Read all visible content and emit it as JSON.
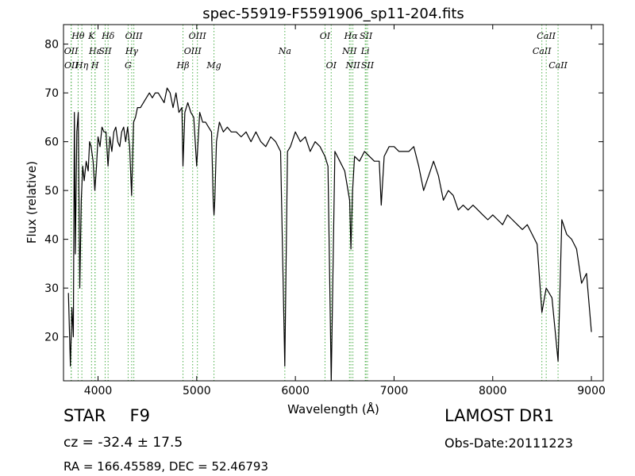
{
  "chart_data": {
    "type": "line",
    "title": "spec-55919-F5591906_sp11-204.fits",
    "xlabel": "Wavelength (Å)",
    "ylabel": "Flux (relative)",
    "xlim": [
      3650,
      9120
    ],
    "ylim": [
      11,
      84
    ],
    "xticks": [
      4000,
      5000,
      6000,
      7000,
      8000,
      9000
    ],
    "yticks": [
      20,
      30,
      40,
      50,
      60,
      70,
      80
    ],
    "grid": false,
    "line_color": "#000000",
    "marker_color": "#4daf4a",
    "series": [
      {
        "x": [
          3700,
          3720,
          3735,
          3750,
          3760,
          3770,
          3785,
          3800,
          3815,
          3830,
          3845,
          3860,
          3880,
          3900,
          3915,
          3930,
          3950,
          3968,
          3985,
          4000,
          4020,
          4040,
          4060,
          4080,
          4101,
          4120,
          4140,
          4160,
          4180,
          4200,
          4220,
          4240,
          4260,
          4280,
          4300,
          4320,
          4340,
          4360,
          4380,
          4400,
          4430,
          4460,
          4490,
          4520,
          4550,
          4580,
          4610,
          4640,
          4670,
          4700,
          4730,
          4760,
          4790,
          4820,
          4850,
          4861,
          4880,
          4910,
          4940,
          4970,
          5000,
          5030,
          5060,
          5090,
          5120,
          5150,
          5167,
          5175,
          5183,
          5200,
          5230,
          5270,
          5310,
          5350,
          5400,
          5450,
          5500,
          5550,
          5600,
          5650,
          5700,
          5750,
          5800,
          5850,
          5893,
          5920,
          5950,
          6000,
          6050,
          6100,
          6150,
          6200,
          6250,
          6300,
          6330,
          6363,
          6400,
          6450,
          6500,
          6550,
          6563,
          6580,
          6600,
          6650,
          6700,
          6750,
          6800,
          6850,
          6870,
          6900,
          6950,
          7000,
          7050,
          7100,
          7150,
          7200,
          7250,
          7300,
          7350,
          7400,
          7450,
          7500,
          7550,
          7600,
          7650,
          7700,
          7750,
          7800,
          7850,
          7900,
          7950,
          8000,
          8050,
          8100,
          8150,
          8200,
          8250,
          8300,
          8350,
          8400,
          8450,
          8498,
          8542,
          8600,
          8662,
          8700,
          8750,
          8800,
          8850,
          8900,
          8950,
          9000
        ],
        "y": [
          29,
          14,
          26,
          20,
          66,
          37,
          62,
          66,
          30,
          48,
          55,
          52,
          56,
          54,
          60,
          59,
          56,
          50,
          55,
          61,
          59,
          63,
          62,
          62,
          55,
          61,
          58,
          62,
          63,
          60,
          59,
          62,
          63,
          60,
          63,
          59,
          49,
          64,
          65,
          67,
          67,
          68,
          69,
          70,
          69,
          70,
          70,
          69,
          68,
          71,
          70,
          67,
          70,
          66,
          67,
          55,
          66,
          68,
          66,
          65,
          55,
          66,
          64,
          64,
          63,
          62,
          48,
          45,
          48,
          60,
          64,
          62,
          63,
          62,
          62,
          61,
          62,
          60,
          62,
          60,
          59,
          61,
          60,
          58,
          14,
          58,
          59,
          62,
          60,
          61,
          58,
          60,
          59,
          57,
          55,
          11,
          58,
          56,
          54,
          48,
          38,
          50,
          57,
          56,
          58,
          57,
          56,
          56,
          47,
          57,
          59,
          59,
          58,
          58,
          58,
          59,
          55,
          50,
          53,
          56,
          53,
          48,
          50,
          49,
          46,
          47,
          46,
          47,
          46,
          45,
          44,
          45,
          44,
          43,
          45,
          44,
          43,
          42,
          43,
          41,
          39,
          25,
          30,
          28,
          15,
          44,
          41,
          40,
          38,
          31,
          33,
          21
        ],
        "style": "line"
      }
    ],
    "line_markers": [
      {
        "label": "Hθ",
        "x": 3798,
        "row": 1
      },
      {
        "label": "OII",
        "x": 3727,
        "row": 2
      },
      {
        "label": "OII",
        "x": 3729,
        "row": 3
      },
      {
        "label": "Hη",
        "x": 3836,
        "row": 3
      },
      {
        "label": "K",
        "x": 3934,
        "row": 1
      },
      {
        "label": "Hε",
        "x": 3970,
        "row": 2
      },
      {
        "label": "H",
        "x": 3969,
        "row": 3
      },
      {
        "label": "SII",
        "x": 4072,
        "row": 2
      },
      {
        "label": "Hδ",
        "x": 4102,
        "row": 1
      },
      {
        "label": "G",
        "x": 4305,
        "row": 3
      },
      {
        "label": "Hγ",
        "x": 4341,
        "row": 2
      },
      {
        "label": "OIII",
        "x": 4363,
        "row": 1
      },
      {
        "label": "Hβ",
        "x": 4861,
        "row": 3
      },
      {
        "label": "OIII",
        "x": 4959,
        "row": 2
      },
      {
        "label": "OIII",
        "x": 5007,
        "row": 1
      },
      {
        "label": "Mg",
        "x": 5175,
        "row": 3
      },
      {
        "label": "Na",
        "x": 5893,
        "row": 2
      },
      {
        "label": "OI",
        "x": 6300,
        "row": 1
      },
      {
        "label": "OI",
        "x": 6363,
        "row": 3
      },
      {
        "label": "NII",
        "x": 6548,
        "row": 2
      },
      {
        "label": "Hα",
        "x": 6563,
        "row": 1
      },
      {
        "label": "NII",
        "x": 6583,
        "row": 3
      },
      {
        "label": "SII",
        "x": 6716,
        "row": 1
      },
      {
        "label": "Li",
        "x": 6708,
        "row": 2
      },
      {
        "label": "SII",
        "x": 6731,
        "row": 3
      },
      {
        "label": "CaII",
        "x": 8498,
        "row": 2
      },
      {
        "label": "CaII",
        "x": 8542,
        "row": 1
      },
      {
        "label": "CaII",
        "x": 8662,
        "row": 3
      }
    ]
  },
  "info": {
    "object_class": "STAR",
    "subclass": "F9",
    "cz": "cz = -32.4 ± 17.5",
    "radec": "RA = 166.45589, DEC = 52.46793",
    "survey": "LAMOST DR1",
    "obs_date": "Obs-Date:20111223"
  }
}
